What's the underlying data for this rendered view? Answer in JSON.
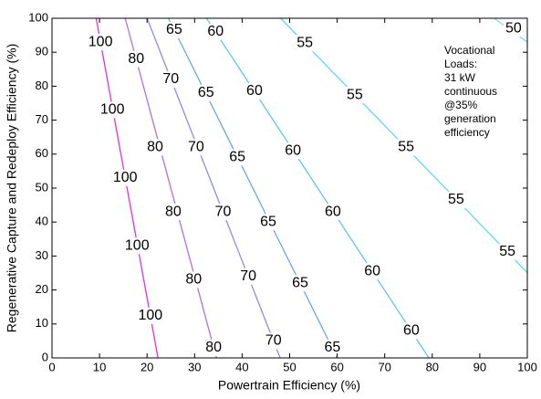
{
  "chart_data": {
    "type": "contour",
    "xlabel": "Powertrain Efficiency (%)",
    "ylabel": "Regenerative Capture and Redeploy Efficiency (%)",
    "xlim": [
      0,
      100
    ],
    "ylim": [
      0,
      100
    ],
    "xticks": [
      0,
      10,
      20,
      30,
      40,
      50,
      60,
      70,
      80,
      90,
      100
    ],
    "yticks": [
      0,
      10,
      20,
      30,
      40,
      50,
      60,
      70,
      80,
      90,
      100
    ],
    "annotation": [
      "Vocational",
      "Loads:",
      "31 kW",
      "continuous",
      "@35%",
      "generation",
      "efficiency"
    ],
    "series": [
      {
        "level": 100,
        "color": "#e030e0",
        "x": [
          9.3,
          22.3
        ],
        "y": [
          100,
          0
        ],
        "label_x": [
          10.2,
          12.7,
          15.4,
          17.9,
          20.7
        ],
        "label_y": [
          93,
          73,
          53,
          33,
          12.4
        ]
      },
      {
        "level": 80,
        "color": "#b070e0",
        "x": [
          15.4,
          34.6
        ],
        "y": [
          100,
          0
        ],
        "label_x": [
          17.7,
          21.7,
          25.5,
          29.8,
          34
        ],
        "label_y": [
          88,
          62,
          43,
          23,
          3
        ]
      },
      {
        "level": 70,
        "color": "#8c8ce8",
        "x": [
          20,
          48
        ],
        "y": [
          100,
          0
        ],
        "label_x": [
          25,
          30.3,
          36,
          41.3,
          46.6
        ],
        "label_y": [
          82,
          62,
          43,
          24,
          5
        ]
      },
      {
        "level": 65,
        "color": "#6aa8e8",
        "x": [
          24.5,
          60
        ],
        "y": [
          100,
          0
        ],
        "label_x": [
          25.7,
          32.4,
          39,
          45.5,
          52.2,
          59
        ],
        "label_y": [
          96.5,
          78,
          59,
          40,
          22,
          3
        ]
      },
      {
        "level": 60,
        "color": "#5cc8ea",
        "x": [
          32.5,
          79.3
        ],
        "y": [
          100,
          0
        ],
        "label_x": [
          34.4,
          42.6,
          50.7,
          59.1,
          67.4,
          75.6
        ],
        "label_y": [
          96,
          78.5,
          61,
          43,
          25.5,
          8
        ]
      },
      {
        "level": 55,
        "color": "#60d8f0",
        "x": [
          48.1,
          100
        ],
        "y": [
          100,
          25.1
        ],
        "label_x": [
          53.2,
          63.7,
          74.5,
          85,
          95.8
        ],
        "label_y": [
          92.7,
          77.4,
          62,
          46.5,
          31.2
        ]
      },
      {
        "level": 50,
        "color": "#70e0f0",
        "x": [
          93,
          100
        ],
        "y": [
          100,
          93
        ],
        "label_x": [
          97.1
        ],
        "label_y": [
          97
        ]
      }
    ]
  }
}
